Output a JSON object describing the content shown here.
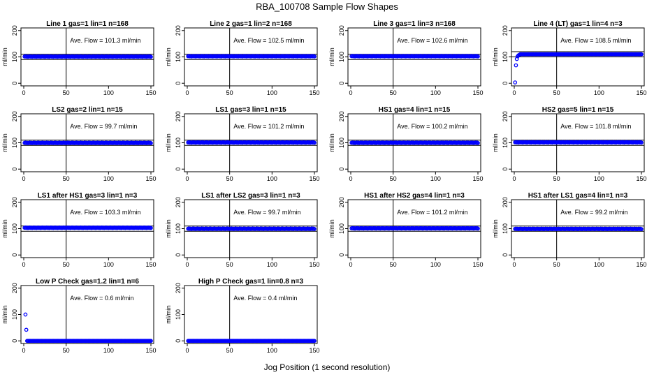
{
  "figure": {
    "title": "RBA_100708  Sample Flow Shapes",
    "xlabel": "Jog Position (1 second resolution)"
  },
  "style": {
    "point_color": "#0000ff",
    "line_color": "#000000"
  },
  "chart_data": [
    {
      "type": "scatter",
      "title": "Line 1 gas=1 lin=1 n=168",
      "ylabel": "ml/min",
      "xlim": [
        0,
        150
      ],
      "ylim": [
        -10,
        210
      ],
      "x_ticks": [
        0,
        50,
        100,
        150
      ],
      "y_ticks": [
        0,
        100,
        200
      ],
      "vline_x": 50,
      "hline_y": [
        90,
        110
      ],
      "annotation": "Ave. Flow =  101.3  ml/min",
      "shape": "flat",
      "level": 101.3,
      "start_points": []
    },
    {
      "type": "scatter",
      "title": "Line 2 gas=1 lin=2 n=168",
      "ylabel": "ml/min",
      "xlim": [
        0,
        150
      ],
      "ylim": [
        -10,
        210
      ],
      "x_ticks": [
        0,
        50,
        100,
        150
      ],
      "y_ticks": [
        0,
        100,
        200
      ],
      "vline_x": 50,
      "hline_y": [
        90,
        110
      ],
      "annotation": "Ave. Flow =  102.5  ml/min",
      "shape": "flat",
      "level": 102.5,
      "start_points": []
    },
    {
      "type": "scatter",
      "title": "Line 3 gas=1 lin=3 n=168",
      "ylabel": "ml/min",
      "xlim": [
        0,
        150
      ],
      "ylim": [
        -10,
        210
      ],
      "x_ticks": [
        0,
        50,
        100,
        150
      ],
      "y_ticks": [
        0,
        100,
        200
      ],
      "vline_x": 50,
      "hline_y": [
        90,
        110
      ],
      "annotation": "Ave. Flow =  102.6  ml/min",
      "shape": "flat",
      "level": 102.6,
      "start_points": []
    },
    {
      "type": "scatter",
      "title": "Line 4 (LT) gas=1 lin=4 n=3",
      "ylabel": "ml/min",
      "xlim": [
        0,
        150
      ],
      "ylim": [
        -10,
        210
      ],
      "x_ticks": [
        0,
        50,
        100,
        150
      ],
      "y_ticks": [
        0,
        100,
        200
      ],
      "vline_x": 50,
      "hline_y": [
        100,
        120
      ],
      "annotation": "Ave. Flow =  108.5  ml/min",
      "shape": "ramp",
      "level": 110,
      "start_points": [
        [
          1,
          3
        ],
        [
          2,
          68
        ],
        [
          3,
          92
        ],
        [
          4,
          102
        ],
        [
          5,
          106
        ],
        [
          6,
          108
        ]
      ]
    },
    {
      "type": "scatter",
      "title": "LS2 gas=2 lin=1 n=15",
      "ylabel": "ml/min",
      "xlim": [
        0,
        150
      ],
      "ylim": [
        -10,
        210
      ],
      "x_ticks": [
        0,
        50,
        100,
        150
      ],
      "y_ticks": [
        0,
        100,
        200
      ],
      "vline_x": 50,
      "hline_y": [
        90,
        110
      ],
      "annotation": "Ave. Flow =  99.7  ml/min",
      "shape": "flat",
      "level": 99.7,
      "start_points": []
    },
    {
      "type": "scatter",
      "title": "LS1 gas=3 lin=1 n=15",
      "ylabel": "ml/min",
      "xlim": [
        0,
        150
      ],
      "ylim": [
        -10,
        210
      ],
      "x_ticks": [
        0,
        50,
        100,
        150
      ],
      "y_ticks": [
        0,
        100,
        200
      ],
      "vline_x": 50,
      "hline_y": [
        90,
        110
      ],
      "annotation": "Ave. Flow =  101.2  ml/min",
      "shape": "flat",
      "level": 101.2,
      "start_points": []
    },
    {
      "type": "scatter",
      "title": "HS1 gas=4 lin=1 n=15",
      "ylabel": "ml/min",
      "xlim": [
        0,
        150
      ],
      "ylim": [
        -10,
        210
      ],
      "x_ticks": [
        0,
        50,
        100,
        150
      ],
      "y_ticks": [
        0,
        100,
        200
      ],
      "vline_x": 50,
      "hline_y": [
        90,
        110
      ],
      "annotation": "Ave. Flow =  100.2  ml/min",
      "shape": "flat",
      "level": 100.2,
      "start_points": []
    },
    {
      "type": "scatter",
      "title": "HS2 gas=5 lin=1 n=15",
      "ylabel": "ml/min",
      "xlim": [
        0,
        150
      ],
      "ylim": [
        -10,
        210
      ],
      "x_ticks": [
        0,
        50,
        100,
        150
      ],
      "y_ticks": [
        0,
        100,
        200
      ],
      "vline_x": 50,
      "hline_y": [
        90,
        110
      ],
      "annotation": "Ave. Flow =  101.8  ml/min",
      "shape": "flat",
      "level": 101.8,
      "start_points": []
    },
    {
      "type": "scatter",
      "title": "LS1 after HS1 gas=3 lin=1 n=3",
      "ylabel": "ml/min",
      "xlim": [
        0,
        150
      ],
      "ylim": [
        -10,
        210
      ],
      "x_ticks": [
        0,
        50,
        100,
        150
      ],
      "y_ticks": [
        0,
        100,
        200
      ],
      "vline_x": 50,
      "hline_y": [
        90,
        110
      ],
      "annotation": "Ave. Flow =  103.3  ml/min",
      "shape": "flat",
      "level": 103.3,
      "start_points": []
    },
    {
      "type": "scatter",
      "title": "LS1 after LS2 gas=3 lin=1 n=3",
      "ylabel": "ml/min",
      "xlim": [
        0,
        150
      ],
      "ylim": [
        -10,
        210
      ],
      "x_ticks": [
        0,
        50,
        100,
        150
      ],
      "y_ticks": [
        0,
        100,
        200
      ],
      "vline_x": 50,
      "hline_y": [
        90,
        110
      ],
      "annotation": "Ave. Flow =  99.7  ml/min",
      "shape": "flat",
      "level": 99.7,
      "start_points": []
    },
    {
      "type": "scatter",
      "title": "HS1 after HS2 gas=4 lin=1 n=3",
      "ylabel": "ml/min",
      "xlim": [
        0,
        150
      ],
      "ylim": [
        -10,
        210
      ],
      "x_ticks": [
        0,
        50,
        100,
        150
      ],
      "y_ticks": [
        0,
        100,
        200
      ],
      "vline_x": 50,
      "hline_y": [
        90,
        110
      ],
      "annotation": "Ave. Flow =  101.2  ml/min",
      "shape": "flat",
      "level": 101.2,
      "start_points": []
    },
    {
      "type": "scatter",
      "title": "HS1 after LS1 gas=4 lin=1 n=3",
      "ylabel": "ml/min",
      "xlim": [
        0,
        150
      ],
      "ylim": [
        -10,
        210
      ],
      "x_ticks": [
        0,
        50,
        100,
        150
      ],
      "y_ticks": [
        0,
        100,
        200
      ],
      "vline_x": 50,
      "hline_y": [
        90,
        110
      ],
      "annotation": "Ave. Flow =  99.2  ml/min",
      "shape": "flat",
      "level": 99.2,
      "start_points": []
    },
    {
      "type": "scatter",
      "title": "Low P Check gas=1.2 lin=1 n=6",
      "ylabel": "ml/min",
      "xlim": [
        0,
        150
      ],
      "ylim": [
        -10,
        210
      ],
      "x_ticks": [
        0,
        50,
        100,
        150
      ],
      "y_ticks": [
        0,
        100,
        200
      ],
      "vline_x": 50,
      "hline_y": [],
      "annotation": "Ave. Flow =  0.6  ml/min",
      "shape": "zero",
      "level": 0,
      "start_points": [
        [
          2,
          100
        ],
        [
          3,
          42
        ]
      ]
    },
    {
      "type": "scatter",
      "title": "High P Check gas=1 lin=0.8 n=3",
      "ylabel": "ml/min",
      "xlim": [
        0,
        150
      ],
      "ylim": [
        -10,
        210
      ],
      "x_ticks": [
        0,
        50,
        100,
        150
      ],
      "y_ticks": [
        0,
        100,
        200
      ],
      "vline_x": 50,
      "hline_y": [],
      "annotation": "Ave. Flow =  0.4  ml/min",
      "shape": "zero",
      "level": 0,
      "start_points": []
    }
  ]
}
